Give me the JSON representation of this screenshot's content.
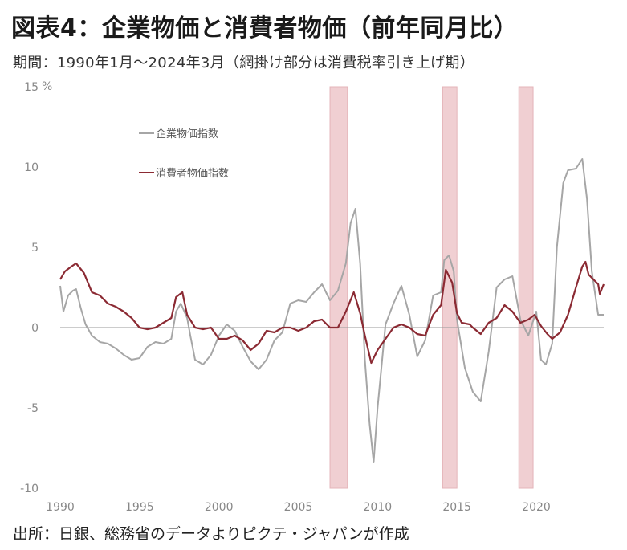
{
  "title": "図表4：企業物価と消費者物価（前年同月比）",
  "subtitle": "期間：1990年1月～2024年3月（網掛け部分は消費税率引き上げ期）",
  "source": "出所：日銀、総務省のデータよりピクテ・ジャパンが作成",
  "colors": {
    "cgpi": "#a6a6a6",
    "cpi": "#8b2a33",
    "shade": "#f0cfd2",
    "zero_line": "#999999",
    "negative_tick": "#b03a3a"
  },
  "chart_data": {
    "type": "line",
    "y_unit": "%",
    "ylim": [
      -10,
      15
    ],
    "yticks": [
      -10,
      -5,
      0,
      5,
      10,
      15
    ],
    "xlim": [
      1990,
      2024.25
    ],
    "xticks": [
      1990,
      1995,
      2000,
      2005,
      2010,
      2015,
      2020
    ],
    "legend_position": "top-left",
    "shaded_periods": [
      [
        2007.0,
        2008.1
      ],
      [
        2014.1,
        2015.0
      ],
      [
        2018.9,
        2019.8
      ]
    ],
    "series": [
      {
        "name": "企業物価指数",
        "color": "#a6a6a6",
        "points": [
          [
            1990.0,
            2.6
          ],
          [
            1990.2,
            1.0
          ],
          [
            1990.5,
            2.0
          ],
          [
            1990.8,
            2.3
          ],
          [
            1991.0,
            2.4
          ],
          [
            1991.3,
            1.2
          ],
          [
            1991.6,
            0.2
          ],
          [
            1992.0,
            -0.5
          ],
          [
            1992.5,
            -0.9
          ],
          [
            1993.0,
            -1.0
          ],
          [
            1993.5,
            -1.3
          ],
          [
            1994.0,
            -1.7
          ],
          [
            1994.5,
            -2.0
          ],
          [
            1995.0,
            -1.9
          ],
          [
            1995.5,
            -1.2
          ],
          [
            1996.0,
            -0.9
          ],
          [
            1996.5,
            -1.0
          ],
          [
            1997.0,
            -0.7
          ],
          [
            1997.3,
            1.0
          ],
          [
            1997.6,
            1.5
          ],
          [
            1998.0,
            0.6
          ],
          [
            1998.2,
            -0.5
          ],
          [
            1998.5,
            -2.0
          ],
          [
            1999.0,
            -2.3
          ],
          [
            1999.5,
            -1.7
          ],
          [
            2000.0,
            -0.5
          ],
          [
            2000.5,
            0.2
          ],
          [
            2001.0,
            -0.2
          ],
          [
            2001.5,
            -1.2
          ],
          [
            2002.0,
            -2.1
          ],
          [
            2002.5,
            -2.6
          ],
          [
            2003.0,
            -2.0
          ],
          [
            2003.5,
            -0.8
          ],
          [
            2004.0,
            -0.3
          ],
          [
            2004.5,
            1.5
          ],
          [
            2005.0,
            1.7
          ],
          [
            2005.5,
            1.6
          ],
          [
            2006.0,
            2.2
          ],
          [
            2006.5,
            2.7
          ],
          [
            2007.0,
            1.7
          ],
          [
            2007.5,
            2.3
          ],
          [
            2008.0,
            4.0
          ],
          [
            2008.3,
            6.5
          ],
          [
            2008.6,
            7.4
          ],
          [
            2008.9,
            4.0
          ],
          [
            2009.2,
            -2.0
          ],
          [
            2009.5,
            -6.0
          ],
          [
            2009.75,
            -8.4
          ],
          [
            2010.0,
            -5.0
          ],
          [
            2010.5,
            0.2
          ],
          [
            2011.0,
            1.5
          ],
          [
            2011.5,
            2.6
          ],
          [
            2012.0,
            0.8
          ],
          [
            2012.5,
            -1.8
          ],
          [
            2013.0,
            -0.8
          ],
          [
            2013.5,
            2.0
          ],
          [
            2014.0,
            2.2
          ],
          [
            2014.2,
            4.2
          ],
          [
            2014.5,
            4.5
          ],
          [
            2014.8,
            3.5
          ],
          [
            2015.0,
            0.5
          ],
          [
            2015.5,
            -2.5
          ],
          [
            2016.0,
            -4.0
          ],
          [
            2016.5,
            -4.6
          ],
          [
            2017.0,
            -1.5
          ],
          [
            2017.5,
            2.5
          ],
          [
            2018.0,
            3.0
          ],
          [
            2018.5,
            3.2
          ],
          [
            2019.0,
            0.5
          ],
          [
            2019.5,
            -0.5
          ],
          [
            2020.0,
            1.0
          ],
          [
            2020.3,
            -2.0
          ],
          [
            2020.6,
            -2.3
          ],
          [
            2021.0,
            -1.0
          ],
          [
            2021.3,
            5.0
          ],
          [
            2021.7,
            9.0
          ],
          [
            2022.0,
            9.8
          ],
          [
            2022.5,
            9.9
          ],
          [
            2022.9,
            10.5
          ],
          [
            2023.2,
            8.0
          ],
          [
            2023.5,
            3.5
          ],
          [
            2023.9,
            0.8
          ],
          [
            2024.25,
            0.8
          ]
        ]
      },
      {
        "name": "消費者物価指数",
        "color": "#8b2a33",
        "points": [
          [
            1990.0,
            3.0
          ],
          [
            1990.3,
            3.5
          ],
          [
            1990.7,
            3.8
          ],
          [
            1991.0,
            4.0
          ],
          [
            1991.5,
            3.4
          ],
          [
            1992.0,
            2.2
          ],
          [
            1992.5,
            2.0
          ],
          [
            1993.0,
            1.5
          ],
          [
            1993.5,
            1.3
          ],
          [
            1994.0,
            1.0
          ],
          [
            1994.5,
            0.6
          ],
          [
            1995.0,
            0.0
          ],
          [
            1995.5,
            -0.1
          ],
          [
            1996.0,
            0.0
          ],
          [
            1996.5,
            0.3
          ],
          [
            1997.0,
            0.6
          ],
          [
            1997.3,
            1.9
          ],
          [
            1997.7,
            2.2
          ],
          [
            1998.0,
            0.8
          ],
          [
            1998.5,
            0.0
          ],
          [
            1999.0,
            -0.1
          ],
          [
            1999.5,
            0.0
          ],
          [
            2000.0,
            -0.7
          ],
          [
            2000.5,
            -0.7
          ],
          [
            2001.0,
            -0.5
          ],
          [
            2001.5,
            -0.8
          ],
          [
            2002.0,
            -1.4
          ],
          [
            2002.5,
            -1.0
          ],
          [
            2003.0,
            -0.2
          ],
          [
            2003.5,
            -0.3
          ],
          [
            2004.0,
            0.0
          ],
          [
            2004.5,
            0.0
          ],
          [
            2005.0,
            -0.2
          ],
          [
            2005.5,
            0.0
          ],
          [
            2006.0,
            0.4
          ],
          [
            2006.5,
            0.5
          ],
          [
            2007.0,
            0.0
          ],
          [
            2007.5,
            0.0
          ],
          [
            2008.0,
            1.0
          ],
          [
            2008.5,
            2.2
          ],
          [
            2008.9,
            0.9
          ],
          [
            2009.2,
            -0.5
          ],
          [
            2009.6,
            -2.2
          ],
          [
            2010.0,
            -1.4
          ],
          [
            2010.5,
            -0.7
          ],
          [
            2011.0,
            0.0
          ],
          [
            2011.5,
            0.2
          ],
          [
            2012.0,
            0.0
          ],
          [
            2012.5,
            -0.4
          ],
          [
            2013.0,
            -0.5
          ],
          [
            2013.5,
            0.8
          ],
          [
            2014.0,
            1.4
          ],
          [
            2014.3,
            3.6
          ],
          [
            2014.7,
            2.8
          ],
          [
            2015.0,
            0.9
          ],
          [
            2015.3,
            0.3
          ],
          [
            2015.8,
            0.2
          ],
          [
            2016.0,
            0.0
          ],
          [
            2016.5,
            -0.4
          ],
          [
            2017.0,
            0.3
          ],
          [
            2017.5,
            0.6
          ],
          [
            2018.0,
            1.4
          ],
          [
            2018.5,
            1.0
          ],
          [
            2019.0,
            0.3
          ],
          [
            2019.5,
            0.5
          ],
          [
            2019.9,
            0.8
          ],
          [
            2020.3,
            0.1
          ],
          [
            2020.7,
            -0.4
          ],
          [
            2021.0,
            -0.7
          ],
          [
            2021.5,
            -0.3
          ],
          [
            2022.0,
            0.8
          ],
          [
            2022.5,
            2.5
          ],
          [
            2022.9,
            3.8
          ],
          [
            2023.1,
            4.1
          ],
          [
            2023.3,
            3.3
          ],
          [
            2023.6,
            3.0
          ],
          [
            2023.9,
            2.7
          ],
          [
            2024.0,
            2.1
          ],
          [
            2024.25,
            2.7
          ]
        ]
      }
    ]
  }
}
